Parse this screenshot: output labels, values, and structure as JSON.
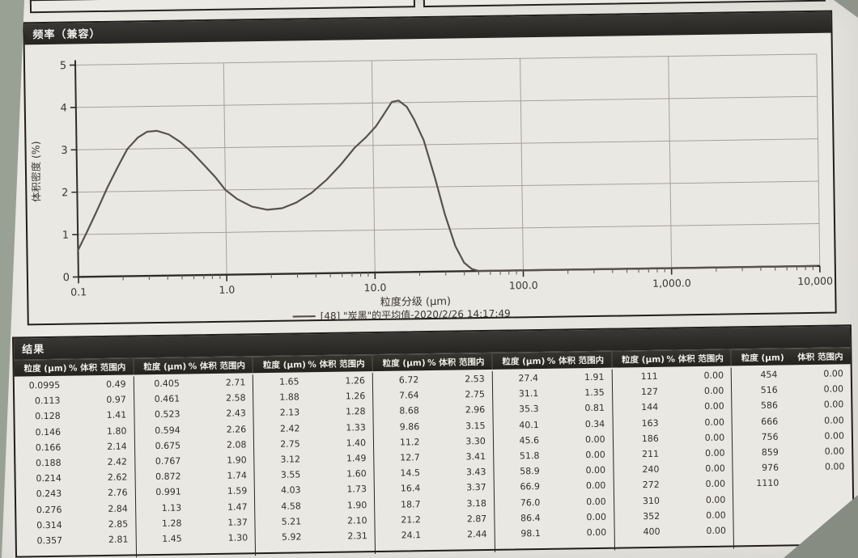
{
  "chart_panel": {
    "title": "频率（兼容）"
  },
  "chart_data": {
    "type": "line",
    "title": "频率（兼容）",
    "xlabel": "粒度分级 (µm)",
    "ylabel": "体积密度 (%)",
    "xscale": "log",
    "xlim": [
      0.1,
      10000
    ],
    "ylim": [
      0,
      5
    ],
    "yticks": [
      "0",
      "1",
      "2",
      "3",
      "4",
      "5"
    ],
    "xticks": [
      0.1,
      1.0,
      10.0,
      100.0,
      1000.0,
      10000.0
    ],
    "xtick_labels": [
      "0.1",
      "1.0",
      "10.0",
      "100.0",
      "1,000.0",
      "10,000.0"
    ],
    "grid": true,
    "legend_position": "bottom",
    "series": [
      {
        "name": "[48] \"炭黑\"的平均值-2020/2/26 14:17:49",
        "color": "#57534c",
        "points": [
          [
            0.1,
            0.63
          ],
          [
            0.115,
            1.05
          ],
          [
            0.135,
            1.55
          ],
          [
            0.16,
            2.1
          ],
          [
            0.19,
            2.6
          ],
          [
            0.22,
            3.0
          ],
          [
            0.26,
            3.27
          ],
          [
            0.3,
            3.4
          ],
          [
            0.35,
            3.42
          ],
          [
            0.42,
            3.33
          ],
          [
            0.5,
            3.15
          ],
          [
            0.6,
            2.9
          ],
          [
            0.72,
            2.6
          ],
          [
            0.86,
            2.3
          ],
          [
            1.0,
            2.0
          ],
          [
            1.2,
            1.78
          ],
          [
            1.5,
            1.6
          ],
          [
            1.9,
            1.52
          ],
          [
            2.4,
            1.55
          ],
          [
            3.0,
            1.68
          ],
          [
            3.8,
            1.9
          ],
          [
            4.8,
            2.2
          ],
          [
            6.0,
            2.55
          ],
          [
            7.5,
            2.95
          ],
          [
            9.0,
            3.2
          ],
          [
            10.5,
            3.45
          ],
          [
            12,
            3.75
          ],
          [
            13.5,
            4.02
          ],
          [
            15,
            4.05
          ],
          [
            17,
            3.9
          ],
          [
            19,
            3.6
          ],
          [
            22,
            3.1
          ],
          [
            26,
            2.2
          ],
          [
            30,
            1.35
          ],
          [
            35,
            0.6
          ],
          [
            40,
            0.2
          ],
          [
            45,
            0.05
          ],
          [
            50,
            0
          ],
          [
            60,
            0
          ],
          [
            100,
            0
          ],
          [
            1000,
            0
          ],
          [
            9500,
            0
          ]
        ]
      }
    ]
  },
  "results_table": {
    "title": "结果",
    "groups": [
      {
        "headers": [
          "粒度 (µm)",
          "% 体积 范围内"
        ],
        "rows": [
          [
            "0.0995",
            "0.49"
          ],
          [
            "0.113",
            "0.97"
          ],
          [
            "0.128",
            "1.41"
          ],
          [
            "0.146",
            "1.80"
          ],
          [
            "0.166",
            "2.14"
          ],
          [
            "0.188",
            "2.42"
          ],
          [
            "0.214",
            "2.62"
          ],
          [
            "0.243",
            "2.76"
          ],
          [
            "0.276",
            "2.84"
          ],
          [
            "0.314",
            "2.85"
          ],
          [
            "0.357",
            "2.81"
          ]
        ]
      },
      {
        "headers": [
          "粒度 (µm)",
          "% 体积 范围内"
        ],
        "rows": [
          [
            "0.405",
            "2.71"
          ],
          [
            "0.461",
            "2.58"
          ],
          [
            "0.523",
            "2.43"
          ],
          [
            "0.594",
            "2.26"
          ],
          [
            "0.675",
            "2.08"
          ],
          [
            "0.767",
            "1.90"
          ],
          [
            "0.872",
            "1.74"
          ],
          [
            "0.991",
            "1.59"
          ],
          [
            "1.13",
            "1.47"
          ],
          [
            "1.28",
            "1.37"
          ],
          [
            "1.45",
            "1.30"
          ]
        ]
      },
      {
        "headers": [
          "粒度 (µm)",
          "% 体积 范围内"
        ],
        "rows": [
          [
            "1.65",
            "1.26"
          ],
          [
            "1.88",
            "1.26"
          ],
          [
            "2.13",
            "1.28"
          ],
          [
            "2.42",
            "1.33"
          ],
          [
            "2.75",
            "1.40"
          ],
          [
            "3.12",
            "1.49"
          ],
          [
            "3.55",
            "1.60"
          ],
          [
            "4.03",
            "1.73"
          ],
          [
            "4.58",
            "1.90"
          ],
          [
            "5.21",
            "2.10"
          ],
          [
            "5.92",
            "2.31"
          ]
        ]
      },
      {
        "headers": [
          "粒度 (µm)",
          "% 体积 范围内"
        ],
        "rows": [
          [
            "6.72",
            "2.53"
          ],
          [
            "7.64",
            "2.75"
          ],
          [
            "8.68",
            "2.96"
          ],
          [
            "9.86",
            "3.15"
          ],
          [
            "11.2",
            "3.30"
          ],
          [
            "12.7",
            "3.41"
          ],
          [
            "14.5",
            "3.43"
          ],
          [
            "16.4",
            "3.37"
          ],
          [
            "18.7",
            "3.18"
          ],
          [
            "21.2",
            "2.87"
          ],
          [
            "24.1",
            "2.44"
          ]
        ]
      },
      {
        "headers": [
          "粒度 (µm)",
          "% 体积 范围内"
        ],
        "rows": [
          [
            "27.4",
            "1.91"
          ],
          [
            "31.1",
            "1.35"
          ],
          [
            "35.3",
            "0.81"
          ],
          [
            "40.1",
            "0.34"
          ],
          [
            "45.6",
            "0.00"
          ],
          [
            "51.8",
            "0.00"
          ],
          [
            "58.9",
            "0.00"
          ],
          [
            "66.9",
            "0.00"
          ],
          [
            "76.0",
            "0.00"
          ],
          [
            "86.4",
            "0.00"
          ],
          [
            "98.1",
            "0.00"
          ]
        ]
      },
      {
        "headers": [
          "粒度 (µm)",
          "% 体积 范围内"
        ],
        "rows": [
          [
            "111",
            "0.00"
          ],
          [
            "127",
            "0.00"
          ],
          [
            "144",
            "0.00"
          ],
          [
            "163",
            "0.00"
          ],
          [
            "186",
            "0.00"
          ],
          [
            "211",
            "0.00"
          ],
          [
            "240",
            "0.00"
          ],
          [
            "272",
            "0.00"
          ],
          [
            "310",
            "0.00"
          ],
          [
            "352",
            "0.00"
          ],
          [
            "400",
            "0.00"
          ]
        ]
      },
      {
        "headers": [
          "粒度 (µm)",
          "体积 范围内"
        ],
        "rows": [
          [
            "454",
            "0.00"
          ],
          [
            "516",
            "0.00"
          ],
          [
            "586",
            "0.00"
          ],
          [
            "666",
            "0.00"
          ],
          [
            "756",
            "0.00"
          ],
          [
            "859",
            "0.00"
          ],
          [
            "976",
            "0.00"
          ],
          [
            "1110",
            ""
          ]
        ]
      }
    ]
  },
  "colors": {
    "header_bar": "#2b2a27",
    "paper": "#e9e7e2",
    "surround": "#99a094",
    "curve": "#57534c",
    "grid": "#a5a199",
    "axis": "#2f2d29",
    "text": "#3a3731"
  }
}
